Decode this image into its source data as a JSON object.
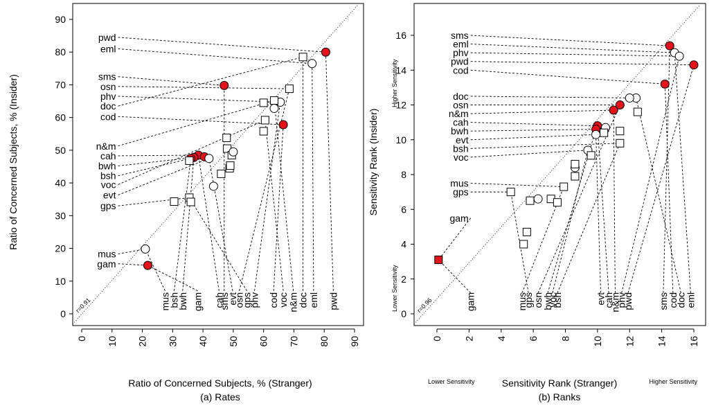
{
  "colors": {
    "highlight": "#dd0000",
    "normal": "#000000",
    "marker_fill_red": "#e2131b"
  },
  "chart_data": [
    {
      "type": "scatter",
      "caption": "(a) Rates",
      "xlabel": "Ratio of Concerned Subjects, % (Stranger)",
      "ylabel": "Ratio of Concerned Subjects, % (Insider)",
      "xlim": [
        0,
        90
      ],
      "ylim": [
        0,
        90
      ],
      "xticks": [
        0,
        10,
        20,
        30,
        40,
        50,
        60,
        70,
        80,
        90
      ],
      "yticks": [
        0,
        10,
        20,
        30,
        40,
        50,
        60,
        70,
        80,
        90
      ],
      "diagonal_label": "r=0.91",
      "legend": "none",
      "points": [
        {
          "label": "pwd",
          "x": 80.5,
          "y": 80.0,
          "marker": "filled-circle",
          "highlight": true,
          "left": {
            "text": "pwd",
            "y": 84.5
          },
          "bottom": {
            "text": "pwd",
            "x": 83
          }
        },
        {
          "label": "eml",
          "x": 76.0,
          "y": 76.5,
          "marker": "circle",
          "highlight": false,
          "left": {
            "text": "eml",
            "y": 81.0
          },
          "bottom": {
            "text": "eml",
            "x": 76.5
          }
        },
        {
          "label": "doc",
          "x": 73.0,
          "y": 78.5,
          "marker": "square",
          "highlight": false,
          "left": {
            "text": "doc",
            "y": 63.5
          },
          "bottom": {
            "text": "doc",
            "x": 73.0
          }
        },
        {
          "label": "sms",
          "x": 47.0,
          "y": 69.8,
          "marker": "filled-circle",
          "highlight": true,
          "left": {
            "text": "sms",
            "y": 72.5
          },
          "bottom": {
            "text": "sms",
            "x": 47.0
          }
        },
        {
          "label": "osn",
          "x": 68.5,
          "y": 68.8,
          "marker": "square",
          "highlight": false,
          "left": {
            "text": "osn",
            "y": 69.5
          },
          "bottom": {
            "text": "osn",
            "x": 52.0
          }
        },
        {
          "label": "phv",
          "x": 65.5,
          "y": 64.7,
          "marker": "circle",
          "highlight": false,
          "left": {
            "text": "phv",
            "y": 66.5
          },
          "bottom": {
            "text": "phv",
            "x": 57.0
          }
        },
        {
          "label": "n&m",
          "x": 63.5,
          "y": 65.2,
          "marker": "square",
          "highlight": false,
          "left": {
            "text": "n&m",
            "y": 51.3
          },
          "bottom": {
            "text": "n&m",
            "x": 69.8
          }
        },
        {
          "label": "cod",
          "x": 66.5,
          "y": 57.8,
          "marker": "filled-circle",
          "highlight": true,
          "left": {
            "text": "cod",
            "y": 60.3
          },
          "bottom": {
            "text": "cod",
            "x": 63.3
          }
        },
        {
          "label": "voc",
          "x": 60.5,
          "y": 59.2,
          "marker": "square",
          "highlight": false,
          "left": {
            "text": "voc",
            "y": 39.5
          },
          "bottom": {
            "text": "voc",
            "x": 66.5
          }
        },
        {
          "label": "phv2",
          "x": 60.0,
          "y": 64.5,
          "marker": "square",
          "highlight": false
        },
        {
          "label": "doc2",
          "x": 63.5,
          "y": 62.8,
          "marker": "circle",
          "highlight": false
        },
        {
          "label": "voc2",
          "x": 60.0,
          "y": 55.8,
          "marker": "square",
          "highlight": false
        },
        {
          "label": "cah",
          "x": 38.5,
          "y": 48.5,
          "marker": "filled-circle",
          "highlight": true,
          "left": {
            "text": "cah",
            "y": 48.3
          },
          "bottom": {
            "text": "cah",
            "x": 45.3
          }
        },
        {
          "label": "bwh",
          "x": 37.0,
          "y": 47.8,
          "marker": "filled-circle",
          "highlight": true,
          "left": {
            "text": "bwh",
            "y": 45.2
          },
          "bottom": {
            "text": "bwh",
            "x": 33.3
          }
        },
        {
          "label": "bsh",
          "x": 36.0,
          "y": 47.5,
          "marker": "filled-circle",
          "highlight": true,
          "left": {
            "text": "bsh",
            "y": 42.2
          },
          "bottom": {
            "text": "bsh",
            "x": 30.5
          }
        },
        {
          "label": "n&m2",
          "x": 40.5,
          "y": 48.0,
          "marker": "filled-circle",
          "highlight": true
        },
        {
          "label": "evt",
          "x": 42.0,
          "y": 47.5,
          "marker": "circle",
          "highlight": false,
          "left": {
            "text": "evt",
            "y": 36.3
          },
          "bottom": {
            "text": "evt",
            "x": 49.8
          }
        },
        {
          "label": "sq-bsh",
          "x": 35.5,
          "y": 46.8,
          "marker": "square",
          "highlight": false
        },
        {
          "label": "sq-cah",
          "x": 47.8,
          "y": 53.8,
          "marker": "square",
          "highlight": false
        },
        {
          "label": "sq-osn",
          "x": 48.0,
          "y": 50.5,
          "marker": "square",
          "highlight": false
        },
        {
          "label": "sq-sms",
          "x": 49.5,
          "y": 48.5,
          "marker": "square",
          "highlight": false
        },
        {
          "label": "c-evt",
          "x": 50.0,
          "y": 49.5,
          "marker": "circle",
          "highlight": false
        },
        {
          "label": "sq-evt",
          "x": 48.8,
          "y": 44.5,
          "marker": "square",
          "highlight": false
        },
        {
          "label": "sq-gps",
          "x": 49.0,
          "y": 45.3,
          "marker": "square",
          "highlight": false
        },
        {
          "label": "sq-cah2",
          "x": 46.0,
          "y": 42.8,
          "marker": "square",
          "highlight": false
        },
        {
          "label": "gam",
          "x": 21.8,
          "y": 14.8,
          "marker": "filled-circle",
          "highlight": true,
          "left": {
            "text": "gam",
            "y": 15.3
          },
          "bottom": {
            "text": "gam",
            "x": 38.3
          }
        },
        {
          "label": "c-gam",
          "x": 43.5,
          "y": 39.0,
          "marker": "circle",
          "highlight": false
        },
        {
          "label": "gps",
          "x": 35.5,
          "y": 35.5,
          "marker": "square",
          "highlight": false,
          "left": {
            "text": "gps",
            "y": 33.0
          },
          "bottom": {
            "text": "gps",
            "x": 54.5
          }
        },
        {
          "label": "sq-bwh",
          "x": 36.0,
          "y": 34.2,
          "marker": "square",
          "highlight": false
        },
        {
          "label": "sq-mus",
          "x": 30.5,
          "y": 34.3,
          "marker": "square",
          "highlight": false
        },
        {
          "label": "mus",
          "x": 21.0,
          "y": 19.8,
          "marker": "circle",
          "highlight": false,
          "left": {
            "text": "mus",
            "y": 18.3
          },
          "bottom": {
            "text": "mus",
            "x": 27.5
          }
        }
      ],
      "left_leader_x": 12,
      "bottom_leader_y": 7
    },
    {
      "type": "scatter",
      "caption": "(b) Ranks",
      "xlabel": "Sensitivity Rank (Stranger)",
      "ylabel": "Sensitivity Rank (Insider)",
      "xlim": [
        -1,
        17
      ],
      "ylim": [
        -0.6,
        17.2
      ],
      "xticks": [
        0,
        2,
        4,
        6,
        8,
        10,
        12,
        14,
        16
      ],
      "yticks": [
        0,
        2,
        4,
        6,
        8,
        10,
        12,
        14,
        16
      ],
      "diagonal_label": "r=0.96",
      "corner_labels": {
        "x_low": "Lower Sensitivity",
        "x_high": "Higher Sensitivity",
        "y_low": "Lower Sensitivity",
        "y_high": "Higher Sensitivity"
      },
      "legend": "none",
      "points": [
        {
          "label": "sms",
          "x": 14.5,
          "y": 15.4,
          "marker": "filled-circle",
          "highlight": true,
          "left": {
            "text": "sms",
            "y": 16.0
          },
          "bottom": {
            "text": "sms",
            "x": 14.1
          }
        },
        {
          "label": "eml",
          "x": 14.8,
          "y": 15.0,
          "marker": "circle",
          "highlight": false,
          "left": {
            "text": "eml",
            "y": 15.5
          },
          "bottom": {
            "text": "eml",
            "x": 15.8
          }
        },
        {
          "label": "phv",
          "x": 15.1,
          "y": 14.8,
          "marker": "circle",
          "highlight": false,
          "left": {
            "text": "phv",
            "y": 15.0
          },
          "bottom": {
            "text": "phv",
            "x": 11.5
          }
        },
        {
          "label": "pwd",
          "x": 16.0,
          "y": 14.3,
          "marker": "filled-circle",
          "highlight": true,
          "left": {
            "text": "pwd",
            "y": 14.5
          },
          "bottom": {
            "text": "pwd",
            "x": 11.9
          }
        },
        {
          "label": "cod",
          "x": 14.2,
          "y": 13.2,
          "marker": "filled-circle",
          "highlight": true,
          "left": {
            "text": "cod",
            "y": 14.0
          },
          "bottom": {
            "text": "cod",
            "x": 14.7
          }
        },
        {
          "label": "doc",
          "x": 12.4,
          "y": 12.4,
          "marker": "circle",
          "highlight": false,
          "left": {
            "text": "doc",
            "y": 12.5
          },
          "bottom": {
            "text": "doc",
            "x": 15.2
          }
        },
        {
          "label": "doc2",
          "x": 12.0,
          "y": 12.4,
          "marker": "circle",
          "highlight": false
        },
        {
          "label": "osn",
          "x": 11.4,
          "y": 12.0,
          "marker": "filled-circle",
          "highlight": true,
          "left": {
            "text": "osn",
            "y": 12.0
          },
          "bottom": {
            "text": "osn",
            "x": 6.3
          }
        },
        {
          "label": "n&m",
          "x": 11.0,
          "y": 11.7,
          "marker": "filled-circle",
          "highlight": true,
          "left": {
            "text": "n&m",
            "y": 11.5
          },
          "bottom": {
            "text": "n&m",
            "x": 11.1
          }
        },
        {
          "label": "sq-n&m",
          "x": 12.5,
          "y": 11.6,
          "marker": "square",
          "highlight": false
        },
        {
          "label": "cah",
          "x": 10.0,
          "y": 10.8,
          "marker": "filled-circle",
          "highlight": true,
          "left": {
            "text": "cah",
            "y": 11.0
          },
          "bottom": {
            "text": "cah",
            "x": 10.7
          }
        },
        {
          "label": "bwh",
          "x": 9.9,
          "y": 10.6,
          "marker": "filled-circle",
          "highlight": true,
          "left": {
            "text": "bwh",
            "y": 10.5
          },
          "bottom": {
            "text": "bwh",
            "x": 6.9
          }
        },
        {
          "label": "c-cah",
          "x": 10.5,
          "y": 10.7,
          "marker": "circle",
          "highlight": false
        },
        {
          "label": "sq-bwh",
          "x": 11.4,
          "y": 10.5,
          "marker": "square",
          "highlight": false
        },
        {
          "label": "evt",
          "x": 9.9,
          "y": 10.3,
          "marker": "circle",
          "highlight": false,
          "left": {
            "text": "evt",
            "y": 10.0
          },
          "bottom": {
            "text": "evt",
            "x": 10.2
          }
        },
        {
          "label": "sq-evt",
          "x": 10.4,
          "y": 10.4,
          "marker": "square",
          "highlight": false
        },
        {
          "label": "bsh",
          "x": 11.4,
          "y": 9.8,
          "marker": "square",
          "highlight": false,
          "left": {
            "text": "bsh",
            "y": 9.5
          },
          "bottom": {
            "text": "bsh",
            "x": 7.5
          }
        },
        {
          "label": "voc",
          "x": 9.4,
          "y": 9.4,
          "marker": "circle",
          "highlight": false,
          "left": {
            "text": "voc",
            "y": 9.0
          },
          "bottom": {
            "text": "voc",
            "x": 7.2
          }
        },
        {
          "label": "sq-voc",
          "x": 9.6,
          "y": 9.1,
          "marker": "square",
          "highlight": false
        },
        {
          "label": "c-mus",
          "x": 8.6,
          "y": 8.4,
          "marker": "circle",
          "highlight": false
        },
        {
          "label": "sq-8.5",
          "x": 8.6,
          "y": 8.6,
          "marker": "square",
          "highlight": false
        },
        {
          "label": "sq-8",
          "x": 8.6,
          "y": 7.9,
          "marker": "square",
          "highlight": false
        },
        {
          "label": "mus",
          "x": 7.9,
          "y": 7.3,
          "marker": "square",
          "highlight": false,
          "left": {
            "text": "mus",
            "y": 7.5
          },
          "bottom": {
            "text": "mus",
            "x": 5.3
          }
        },
        {
          "label": "gps",
          "x": 4.6,
          "y": 7.0,
          "marker": "square",
          "highlight": false,
          "left": {
            "text": "gps",
            "y": 7.0
          },
          "bottom": {
            "text": "gps",
            "x": 5.7
          }
        },
        {
          "label": "c-gps",
          "x": 6.3,
          "y": 6.6,
          "marker": "circle",
          "highlight": false
        },
        {
          "label": "sq-6.5a",
          "x": 5.8,
          "y": 6.5,
          "marker": "square",
          "highlight": false
        },
        {
          "label": "sq-6.6",
          "x": 7.1,
          "y": 6.6,
          "marker": "square",
          "highlight": false
        },
        {
          "label": "sq-6.4",
          "x": 7.5,
          "y": 6.4,
          "marker": "square",
          "highlight": false
        },
        {
          "label": "gam",
          "x": 0.1,
          "y": 3.1,
          "marker": "filled-square",
          "highlight": true,
          "left": {
            "text": "gam",
            "y": 5.5
          },
          "bottom": {
            "text": "gam",
            "x": 2.1
          }
        },
        {
          "label": "sq-4.7",
          "x": 5.6,
          "y": 4.7,
          "marker": "square",
          "highlight": false
        },
        {
          "label": "sq-4.0",
          "x": 5.4,
          "y": 4.0,
          "marker": "square",
          "highlight": false
        }
      ],
      "left_leader_x": 2.1,
      "bottom_leader_y": 1.2
    }
  ]
}
